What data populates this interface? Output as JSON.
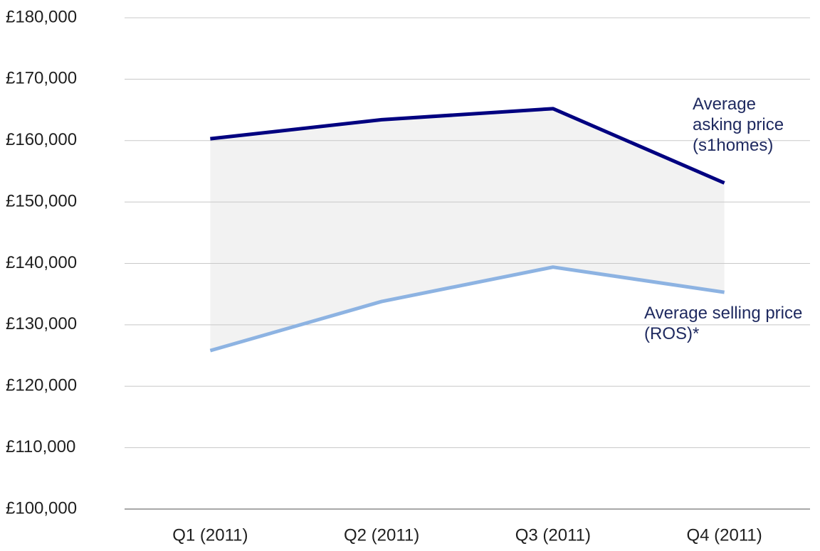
{
  "chart_data": {
    "type": "line",
    "categories": [
      "Q1 (2011)",
      "Q2 (2011)",
      "Q3 (2011)",
      "Q4 (2011)"
    ],
    "series": [
      {
        "name": "Average asking price (s1homes)",
        "color": "#000080",
        "values": [
          160300,
          163400,
          165200,
          153100
        ]
      },
      {
        "name": "Average selling price (ROS)*",
        "color": "#8db3e2",
        "values": [
          125800,
          133800,
          139400,
          135300
        ]
      }
    ],
    "fill_between_color": "#f2f2f2",
    "ylim": [
      100000,
      180000
    ],
    "yticks": [
      {
        "value": 100000,
        "label": "£100,000"
      },
      {
        "value": 110000,
        "label": "£110,000"
      },
      {
        "value": 120000,
        "label": "£120,000"
      },
      {
        "value": 130000,
        "label": "£130,000"
      },
      {
        "value": 140000,
        "label": "£140,000"
      },
      {
        "value": 150000,
        "label": "£150,000"
      },
      {
        "value": 160000,
        "label": "£160,000"
      },
      {
        "value": 170000,
        "label": "£170,000"
      },
      {
        "value": 180000,
        "label": "£180,000"
      }
    ],
    "grid": true
  }
}
